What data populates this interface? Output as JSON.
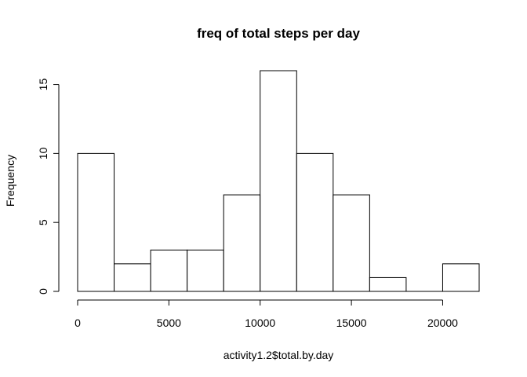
{
  "chart_data": {
    "type": "bar",
    "title": "freq of total steps per day",
    "xlabel": "activity1.2$total.by.day",
    "ylabel": "Frequency",
    "bins": [
      {
        "start": 0,
        "end": 2000,
        "count": 10
      },
      {
        "start": 2000,
        "end": 4000,
        "count": 2
      },
      {
        "start": 4000,
        "end": 6000,
        "count": 3
      },
      {
        "start": 6000,
        "end": 8000,
        "count": 3
      },
      {
        "start": 8000,
        "end": 10000,
        "count": 7
      },
      {
        "start": 10000,
        "end": 12000,
        "count": 16
      },
      {
        "start": 12000,
        "end": 14000,
        "count": 10
      },
      {
        "start": 14000,
        "end": 16000,
        "count": 7
      },
      {
        "start": 16000,
        "end": 18000,
        "count": 1
      },
      {
        "start": 18000,
        "end": 20000,
        "count": 0
      },
      {
        "start": 20000,
        "end": 22000,
        "count": 2
      }
    ],
    "xlim": [
      0,
      22000
    ],
    "ylim": [
      0,
      16
    ],
    "x_ticks": [
      0,
      5000,
      10000,
      15000,
      20000
    ],
    "y_ticks": [
      0,
      5,
      10,
      15
    ],
    "grid": false,
    "colors": {
      "bar_fill": "#ffffff",
      "bar_stroke": "#000000"
    }
  }
}
